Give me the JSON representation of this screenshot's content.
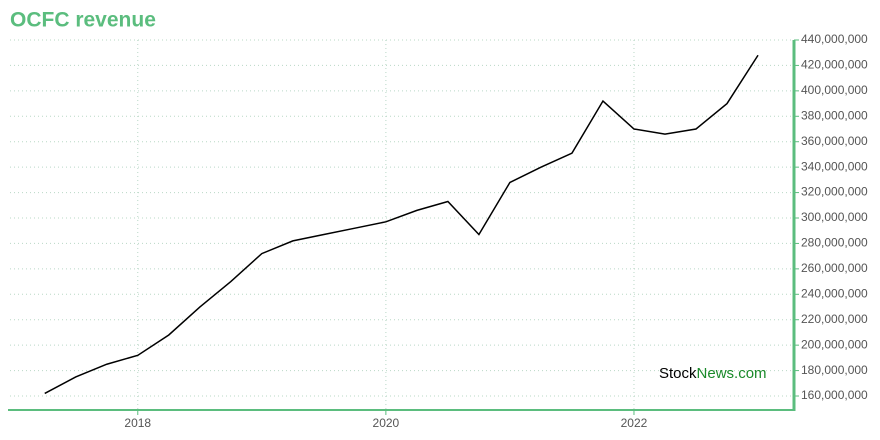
{
  "chart_data": {
    "type": "line",
    "title": "OCFC revenue",
    "x": [
      2017.25,
      2017.5,
      2017.75,
      2018.0,
      2018.25,
      2018.5,
      2018.75,
      2019.0,
      2019.25,
      2019.5,
      2019.75,
      2020.0,
      2020.25,
      2020.5,
      2020.75,
      2021.0,
      2021.25,
      2021.5,
      2021.75,
      2022.0,
      2022.25,
      2022.5,
      2022.75,
      2023.0
    ],
    "series": [
      {
        "name": "revenue",
        "color": "#000000",
        "values": [
          162000000,
          175000000,
          185000000,
          192000000,
          208000000,
          230000000,
          250000000,
          272000000,
          282000000,
          287000000,
          292000000,
          297000000,
          306000000,
          313000000,
          287000000,
          328000000,
          340000000,
          351000000,
          392000000,
          370000000,
          366000000,
          370000000,
          390000000,
          428000000
        ]
      }
    ],
    "xlim": [
      2016.97,
      2023.29
    ],
    "xticks": [
      2018,
      2020,
      2022
    ],
    "ylim": [
      149000000,
      440000000
    ],
    "yticks": [
      {
        "value": 160000000,
        "label": "160,000,000"
      },
      {
        "value": 180000000,
        "label": "180,000,000"
      },
      {
        "value": 200000000,
        "label": "200,000,000"
      },
      {
        "value": 220000000,
        "label": "220,000,000"
      },
      {
        "value": 240000000,
        "label": "240,000,000"
      },
      {
        "value": 260000000,
        "label": "260,000,000"
      },
      {
        "value": 280000000,
        "label": "280,000,000"
      },
      {
        "value": 300000000,
        "label": "300,000,000"
      },
      {
        "value": 320000000,
        "label": "320,000,000"
      },
      {
        "value": 340000000,
        "label": "340,000,000"
      },
      {
        "value": 360000000,
        "label": "360,000,000"
      },
      {
        "value": 380000000,
        "label": "380,000,000"
      },
      {
        "value": 400000000,
        "label": "400,000,000"
      },
      {
        "value": 420000000,
        "label": "420,000,000"
      },
      {
        "value": 440000000,
        "label": "440,000,000"
      }
    ],
    "grid": true,
    "axis_color": "#5bbd7e",
    "watermark": {
      "brand": "Stock",
      "suffix": "News.com"
    }
  }
}
